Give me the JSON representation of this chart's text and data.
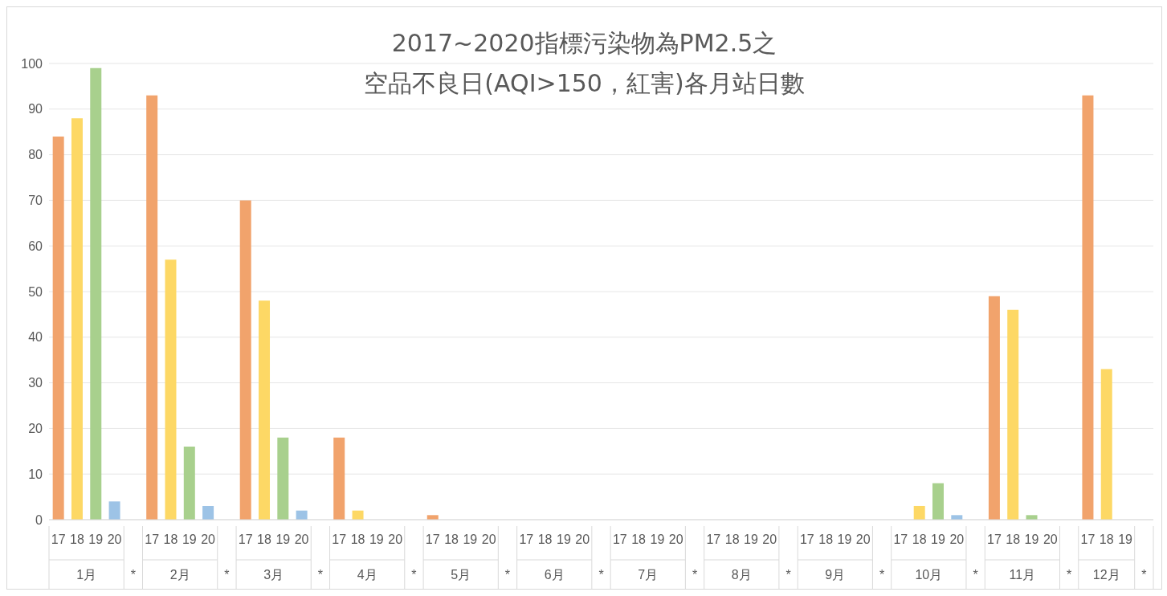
{
  "chart_data": {
    "type": "bar",
    "title": "2017~2020指標污染物為PM2.5之",
    "subtitle": "空品不良日(AQI>150，紅害)各月站日數",
    "categories": [
      "17",
      "18",
      "19",
      "20",
      null,
      "17",
      "18",
      "19",
      "20",
      null,
      "17",
      "18",
      "19",
      "20",
      null,
      "17",
      "18",
      "19",
      "20",
      null,
      "17",
      "18",
      "19",
      "20",
      null,
      "17",
      "18",
      "19",
      "20",
      null,
      "17",
      "18",
      "19",
      "20",
      null,
      "17",
      "18",
      "19",
      "20",
      null,
      "17",
      "18",
      "19",
      "20",
      null,
      "17",
      "18",
      "19",
      "20",
      null,
      "17",
      "18",
      "19",
      "20",
      null,
      "17",
      "18",
      "19",
      null
    ],
    "annotations": [
      "1月",
      "*",
      "2月",
      "*",
      "3月",
      "*",
      "4月",
      "*",
      "5月",
      "*",
      "6月",
      "*",
      "7月",
      "*",
      "8月",
      "*",
      "9月",
      "*",
      "10月",
      "*",
      "11月",
      "*",
      "12月",
      "*"
    ],
    "values": [
      84,
      88,
      99,
      4,
      null,
      93,
      57,
      16,
      3,
      null,
      70,
      48,
      18,
      2,
      null,
      18,
      2,
      0,
      0,
      null,
      1,
      0,
      0,
      0,
      null,
      0,
      0,
      0,
      0,
      null,
      0,
      0,
      0,
      0,
      null,
      0,
      0,
      0,
      0,
      null,
      0,
      0,
      0,
      0,
      null,
      0,
      3,
      8,
      1,
      null,
      49,
      46,
      1,
      0,
      null,
      93,
      33,
      0,
      null
    ],
    "colors": [
      "#f1a36c",
      "#fdd865",
      "#a8d08d",
      "#9dc3e6",
      null,
      "#f1a36c",
      "#fdd865",
      "#a8d08d",
      "#9dc3e6",
      null,
      "#f1a36c",
      "#fdd865",
      "#a8d08d",
      "#9dc3e6",
      null,
      "#f1a36c",
      "#fdd865",
      "#a8d08d",
      "#9dc3e6",
      null,
      "#f1a36c",
      "#fdd865",
      "#a8d08d",
      "#9dc3e6",
      null,
      "#f1a36c",
      "#fdd865",
      "#a8d08d",
      "#9dc3e6",
      null,
      "#f1a36c",
      "#fdd865",
      "#a8d08d",
      "#9dc3e6",
      null,
      "#f1a36c",
      "#fdd865",
      "#a8d08d",
      "#9dc3e6",
      null,
      "#f1a36c",
      "#fdd865",
      "#a8d08d",
      "#9dc3e6",
      null,
      "#f1a36c",
      "#fdd865",
      "#a8d08d",
      "#9dc3e6",
      null,
      "#f1a36c",
      "#fdd865",
      "#a8d08d",
      "#9dc3e6",
      null,
      "#f1a36c",
      "#fdd865",
      "#a8d08d",
      null
    ],
    "ylim": [
      0,
      100
    ],
    "yticks": [
      0,
      10,
      20,
      30,
      40,
      50,
      60,
      70,
      80,
      90,
      100
    ],
    "grid": "y",
    "legend": false
  }
}
